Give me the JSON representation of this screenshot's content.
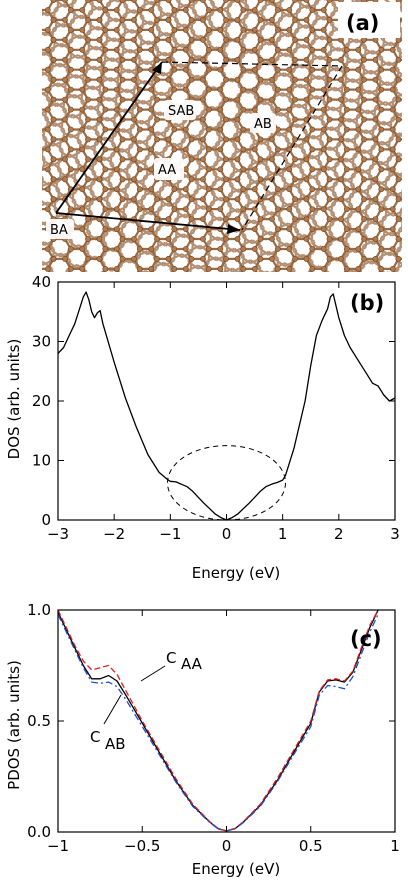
{
  "panel_a": {
    "tag": "(a)",
    "regions": [
      "SAB",
      "AB",
      "AA",
      "BA"
    ],
    "colors": {
      "bond": "#9a6b45",
      "atom": "#b07a4c",
      "atom_edge": "#6e4323"
    }
  },
  "chart_data": [
    {
      "type": "line",
      "panel": "(b)",
      "xlabel": "Energy (eV)",
      "ylabel": "DOS (arb. units)",
      "xlim": [
        -3,
        3
      ],
      "ylim": [
        0,
        40
      ],
      "xticks": [
        -3,
        -2,
        -1,
        0,
        1,
        2,
        3
      ],
      "yticks": [
        0,
        10,
        20,
        30,
        40
      ],
      "x_tick_labels": [
        "−3",
        "−2",
        "−1",
        "0",
        "1",
        "2",
        "3"
      ],
      "y_tick_labels": [
        "0",
        "10",
        "20",
        "30",
        "40"
      ],
      "annotation": "dashed ellipse around E = 0 (−1.05 to 1.05 eV, 0 to 12.5)",
      "series": [
        {
          "color": "#000000",
          "style": "solid",
          "x": [
            -3.0,
            -2.9,
            -2.8,
            -2.7,
            -2.6,
            -2.55,
            -2.5,
            -2.45,
            -2.4,
            -2.35,
            -2.3,
            -2.25,
            -2.2,
            -2.0,
            -1.8,
            -1.6,
            -1.4,
            -1.2,
            -1.05,
            -1.0,
            -0.9,
            -0.8,
            -0.7,
            -0.6,
            -0.5,
            -0.4,
            -0.3,
            -0.2,
            -0.1,
            0.0,
            0.1,
            0.2,
            0.3,
            0.4,
            0.5,
            0.6,
            0.7,
            0.8,
            0.9,
            1.0,
            1.05,
            1.2,
            1.4,
            1.5,
            1.6,
            1.7,
            1.75,
            1.8,
            1.85,
            1.9,
            2.0,
            2.1,
            2.2,
            2.3,
            2.4,
            2.5,
            2.6,
            2.7,
            2.8,
            2.9,
            3.0
          ],
          "y": [
            28.0,
            29.0,
            31.0,
            33.0,
            36.0,
            37.5,
            38.3,
            37.0,
            35.0,
            34.0,
            34.8,
            35.2,
            33.0,
            26.5,
            20.5,
            15.5,
            11.0,
            8.0,
            6.8,
            6.5,
            6.4,
            6.0,
            5.6,
            4.8,
            3.8,
            2.8,
            1.9,
            1.0,
            0.4,
            0.0,
            0.4,
            1.0,
            1.9,
            2.8,
            3.8,
            4.8,
            5.6,
            6.0,
            6.3,
            6.7,
            7.5,
            12.0,
            20.0,
            26.0,
            31.0,
            33.5,
            34.5,
            35.5,
            37.5,
            38.0,
            34.0,
            31.0,
            29.0,
            27.5,
            26.0,
            24.5,
            23.0,
            22.5,
            21.0,
            20.0,
            20.5
          ]
        }
      ]
    },
    {
      "type": "line",
      "panel": "(c)",
      "xlabel": "Energy (eV)",
      "ylabel": "PDOS (arb. units)",
      "xlim": [
        -1,
        1
      ],
      "ylim": [
        0.0,
        1.0
      ],
      "xticks": [
        -1,
        -0.5,
        0,
        0.5,
        1
      ],
      "yticks": [
        0.0,
        0.5,
        1.0
      ],
      "x_tick_labels": [
        "−1",
        "−0.5",
        "0",
        "0.5",
        "1"
      ],
      "y_tick_labels": [
        "0.0",
        "0.5",
        "1.0"
      ],
      "annotations": [
        {
          "label": "C",
          "subscript": "AA"
        },
        {
          "label": "C",
          "subscript": "AB"
        }
      ],
      "series": [
        {
          "color": "#000000",
          "style": "solid",
          "x": [
            -1.0,
            -0.95,
            -0.9,
            -0.85,
            -0.8,
            -0.75,
            -0.7,
            -0.65,
            -0.6,
            -0.5,
            -0.4,
            -0.3,
            -0.2,
            -0.1,
            -0.05,
            0.0,
            0.05,
            0.1,
            0.2,
            0.3,
            0.4,
            0.5,
            0.55,
            0.6,
            0.65,
            0.7,
            0.75,
            0.8,
            0.85,
            0.9
          ],
          "y": [
            0.99,
            0.91,
            0.83,
            0.75,
            0.69,
            0.69,
            0.705,
            0.68,
            0.62,
            0.49,
            0.36,
            0.23,
            0.12,
            0.045,
            0.015,
            0.005,
            0.015,
            0.045,
            0.12,
            0.23,
            0.36,
            0.49,
            0.63,
            0.68,
            0.685,
            0.675,
            0.72,
            0.82,
            0.92,
            1.0
          ]
        },
        {
          "color": "#e02020",
          "style": "dashed",
          "x": [
            -1.0,
            -0.95,
            -0.9,
            -0.85,
            -0.8,
            -0.75,
            -0.7,
            -0.65,
            -0.6,
            -0.5,
            -0.4,
            -0.3,
            -0.2,
            -0.1,
            -0.05,
            0.0,
            0.05,
            0.1,
            0.2,
            0.3,
            0.4,
            0.5,
            0.55,
            0.6,
            0.65,
            0.7,
            0.75,
            0.8,
            0.85,
            0.9
          ],
          "y": [
            1.0,
            0.92,
            0.84,
            0.77,
            0.73,
            0.74,
            0.75,
            0.71,
            0.64,
            0.5,
            0.37,
            0.24,
            0.125,
            0.047,
            0.016,
            0.005,
            0.016,
            0.047,
            0.125,
            0.24,
            0.37,
            0.5,
            0.635,
            0.685,
            0.69,
            0.68,
            0.725,
            0.83,
            0.93,
            1.0
          ]
        },
        {
          "color": "#2050d0",
          "style": "dash-dot",
          "x": [
            -1.0,
            -0.95,
            -0.9,
            -0.85,
            -0.8,
            -0.75,
            -0.7,
            -0.65,
            -0.6,
            -0.5,
            -0.4,
            -0.3,
            -0.2,
            -0.1,
            -0.05,
            0.0,
            0.05,
            0.1,
            0.2,
            0.3,
            0.4,
            0.5,
            0.55,
            0.6,
            0.65,
            0.7,
            0.75,
            0.8,
            0.85,
            0.9
          ],
          "y": [
            0.98,
            0.9,
            0.82,
            0.74,
            0.675,
            0.67,
            0.675,
            0.655,
            0.6,
            0.475,
            0.35,
            0.225,
            0.115,
            0.043,
            0.014,
            0.005,
            0.014,
            0.043,
            0.115,
            0.225,
            0.35,
            0.475,
            0.615,
            0.66,
            0.655,
            0.645,
            0.7,
            0.8,
            0.9,
            0.98
          ]
        }
      ]
    }
  ]
}
